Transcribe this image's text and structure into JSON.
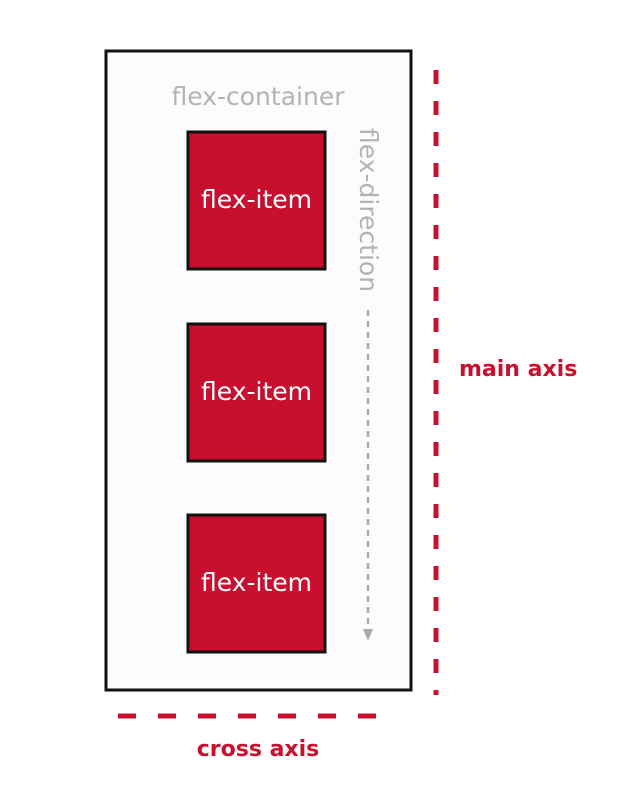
{
  "container": {
    "label": "flex-container"
  },
  "items": [
    {
      "label": "flex-item"
    },
    {
      "label": "flex-item"
    },
    {
      "label": "flex-item"
    }
  ],
  "direction": {
    "label": "flex-direction"
  },
  "axes": {
    "main": "main axis",
    "cross": "cross axis"
  },
  "colors": {
    "item_fill": "#c8102e",
    "border": "#111111",
    "muted_text": "#b3b3b3",
    "container_fill": "#fcfcfc"
  }
}
